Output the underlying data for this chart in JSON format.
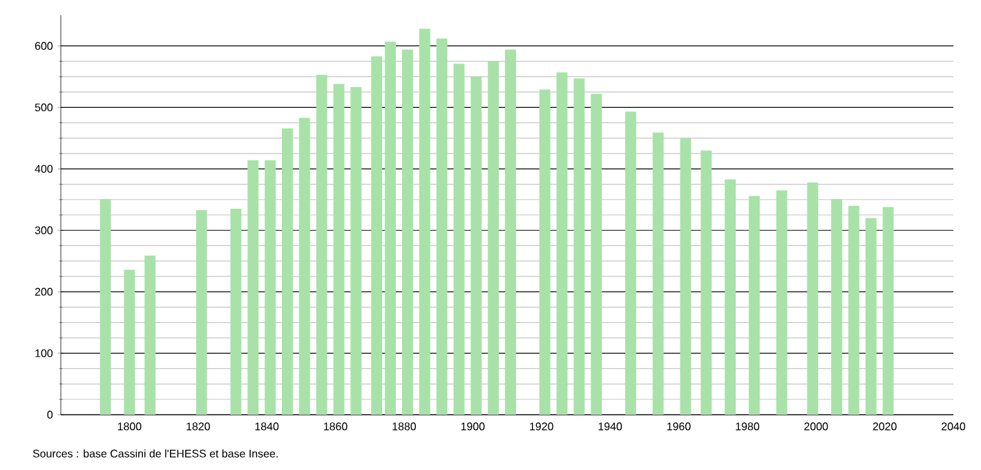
{
  "chart_data": {
    "type": "bar",
    "x": [
      1793,
      1800,
      1806,
      1821,
      1831,
      1836,
      1841,
      1846,
      1851,
      1856,
      1861,
      1866,
      1872,
      1876,
      1881,
      1886,
      1891,
      1896,
      1901,
      1906,
      1911,
      1921,
      1926,
      1931,
      1936,
      1946,
      1954,
      1962,
      1968,
      1975,
      1982,
      1990,
      1999,
      2006,
      2011,
      2016,
      2021
    ],
    "values": [
      351,
      236,
      259,
      333,
      335,
      414,
      414,
      466,
      483,
      553,
      538,
      533,
      583,
      607,
      594,
      628,
      612,
      571,
      550,
      575,
      594,
      529,
      557,
      547,
      522,
      493,
      459,
      450,
      430,
      383,
      356,
      365,
      378,
      351,
      340,
      320,
      338
    ],
    "color": "#a8e2a8",
    "xlim": [
      1780,
      2040
    ],
    "xticks": [
      1800,
      1820,
      1840,
      1860,
      1880,
      1900,
      1920,
      1940,
      1960,
      1980,
      2000,
      2020,
      2040
    ],
    "ylim": [
      0,
      650
    ],
    "yticks": [
      0,
      100,
      200,
      300,
      400,
      500,
      600
    ],
    "grid": "y",
    "annotations": [
      "Sources : base Cassini de l'EHESS et base Insee."
    ]
  }
}
